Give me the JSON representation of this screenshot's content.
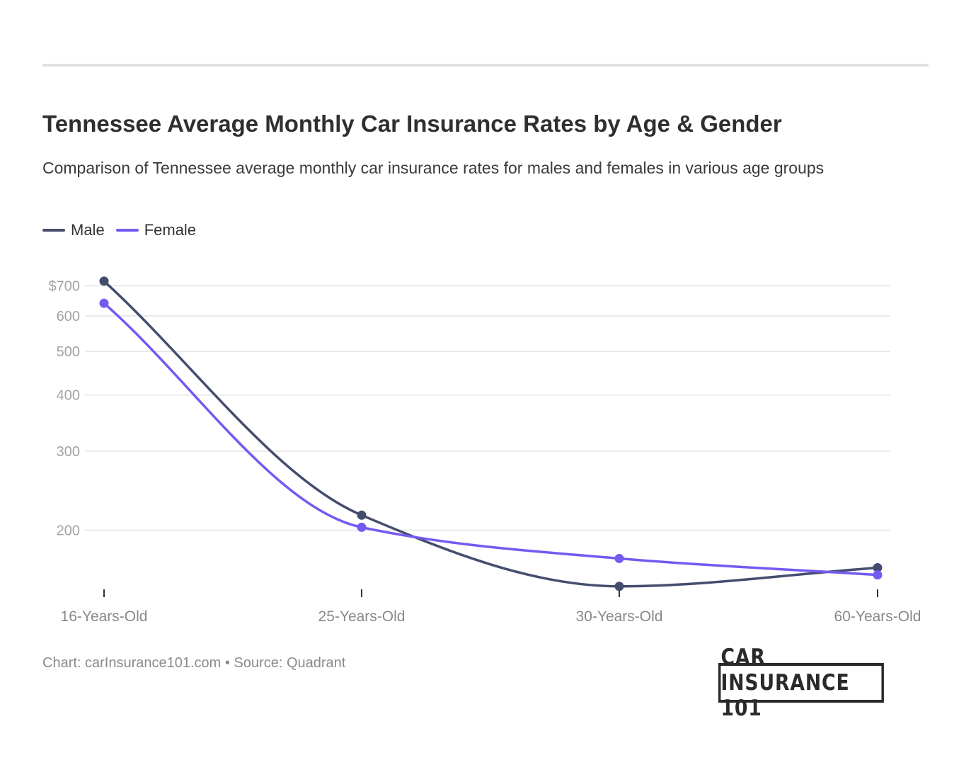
{
  "title": "Tennessee Average Monthly Car Insurance Rates by Age & Gender",
  "subtitle": "Comparison of Tennessee average monthly car insurance rates for males and females in various age groups",
  "footer": "Chart: carInsurance101.com • Source: Quadrant",
  "logo_text": "CAR INSURANCE 101",
  "chart_data": {
    "type": "line",
    "categories": [
      "16-Years-Old",
      "25-Years-Old",
      "30-Years-Old",
      "60-Years-Old"
    ],
    "series": [
      {
        "name": "Male",
        "color": "#454d6f",
        "values": [
          717,
          216,
          150,
          165
        ]
      },
      {
        "name": "Female",
        "color": "#7559f2",
        "values": [
          640,
          203,
          173,
          159
        ]
      }
    ],
    "y_scale": "log",
    "yticks": [
      200,
      300,
      400,
      500,
      600,
      700
    ],
    "ytick_labels": [
      "200",
      "300",
      "400",
      "500",
      "600",
      "$700"
    ],
    "grid": true,
    "legend_position": "top-left"
  }
}
